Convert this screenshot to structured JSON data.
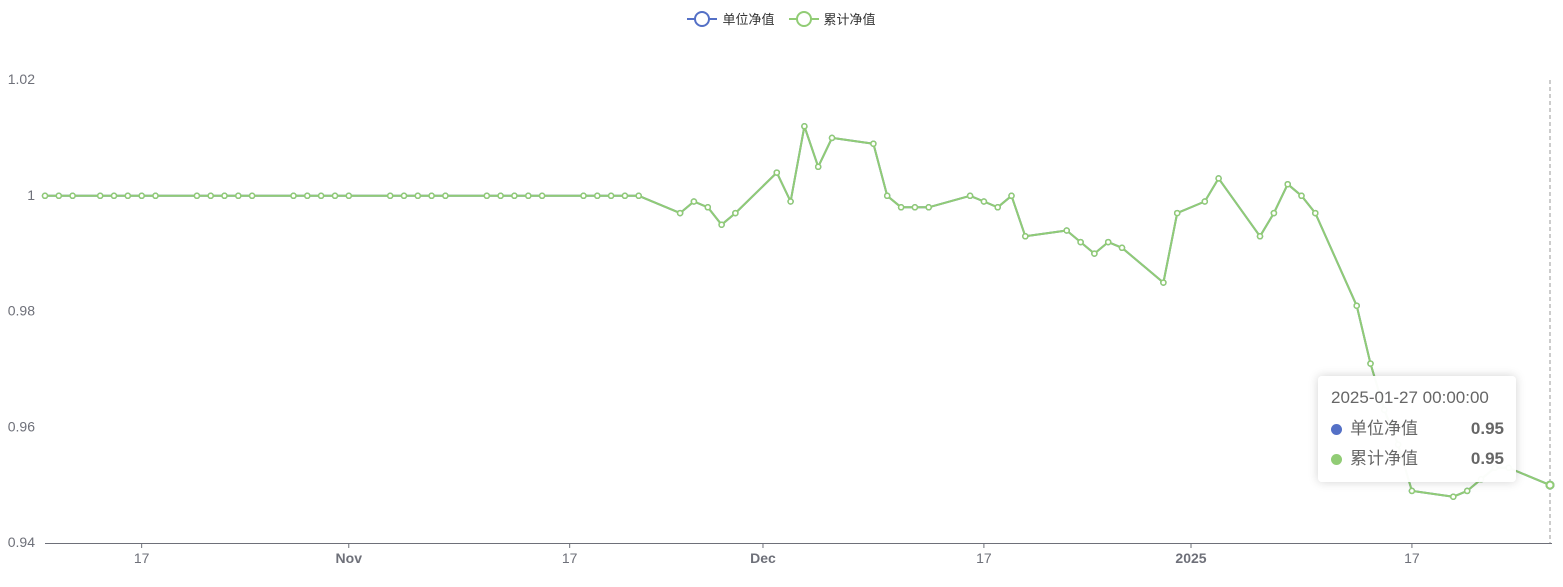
{
  "legend": {
    "items": [
      {
        "label": "单位净值",
        "color": "#5470c6"
      },
      {
        "label": "累计净值",
        "color": "#91cc75"
      }
    ]
  },
  "tooltip": {
    "title": "2025-01-27 00:00:00",
    "rows": [
      {
        "name": "单位净值",
        "value": "0.95",
        "color": "#5470c6"
      },
      {
        "name": "累计净值",
        "value": "0.95",
        "color": "#91cc75"
      }
    ]
  },
  "chart_data": {
    "type": "line",
    "ylim": [
      0.94,
      1.02
    ],
    "y_ticks": [
      "1.02",
      "1",
      "0.98",
      "0.96",
      "0.94"
    ],
    "y_tick_values": [
      1.02,
      1.0,
      0.98,
      0.96,
      0.94
    ],
    "x_range": [
      "2024-10-10",
      "2025-01-27"
    ],
    "x_ticks": [
      {
        "date": "2024-10-17",
        "label": "17",
        "bold": false
      },
      {
        "date": "2024-11-01",
        "label": "Nov",
        "bold": true
      },
      {
        "date": "2024-11-17",
        "label": "17",
        "bold": false
      },
      {
        "date": "2024-12-01",
        "label": "Dec",
        "bold": true
      },
      {
        "date": "2024-12-17",
        "label": "17",
        "bold": false
      },
      {
        "date": "2025-01-01",
        "label": "2025",
        "bold": true
      },
      {
        "date": "2025-01-17",
        "label": "17",
        "bold": false
      }
    ],
    "series": [
      {
        "name": "单位净值",
        "color": "#5470c6",
        "points": [
          [
            "2024-10-10",
            1.0
          ],
          [
            "2024-10-11",
            1.0
          ],
          [
            "2024-10-12",
            1.0
          ],
          [
            "2024-10-14",
            1.0
          ],
          [
            "2024-10-15",
            1.0
          ],
          [
            "2024-10-16",
            1.0
          ],
          [
            "2024-10-17",
            1.0
          ],
          [
            "2024-10-18",
            1.0
          ],
          [
            "2024-10-21",
            1.0
          ],
          [
            "2024-10-22",
            1.0
          ],
          [
            "2024-10-23",
            1.0
          ],
          [
            "2024-10-24",
            1.0
          ],
          [
            "2024-10-25",
            1.0
          ],
          [
            "2024-10-28",
            1.0
          ],
          [
            "2024-10-29",
            1.0
          ],
          [
            "2024-10-30",
            1.0
          ],
          [
            "2024-10-31",
            1.0
          ],
          [
            "2024-11-01",
            1.0
          ],
          [
            "2024-11-04",
            1.0
          ],
          [
            "2024-11-05",
            1.0
          ],
          [
            "2024-11-06",
            1.0
          ],
          [
            "2024-11-07",
            1.0
          ],
          [
            "2024-11-08",
            1.0
          ],
          [
            "2024-11-11",
            1.0
          ],
          [
            "2024-11-12",
            1.0
          ],
          [
            "2024-11-13",
            1.0
          ],
          [
            "2024-11-14",
            1.0
          ],
          [
            "2024-11-15",
            1.0
          ],
          [
            "2024-11-18",
            1.0
          ],
          [
            "2024-11-19",
            1.0
          ],
          [
            "2024-11-20",
            1.0
          ],
          [
            "2024-11-21",
            1.0
          ],
          [
            "2024-11-22",
            1.0
          ],
          [
            "2024-11-25",
            0.997
          ],
          [
            "2024-11-26",
            0.999
          ],
          [
            "2024-11-27",
            0.998
          ],
          [
            "2024-11-28",
            0.995
          ],
          [
            "2024-11-29",
            0.997
          ],
          [
            "2024-12-02",
            1.004
          ],
          [
            "2024-12-03",
            0.999
          ],
          [
            "2024-12-04",
            1.012
          ],
          [
            "2024-12-05",
            1.005
          ],
          [
            "2024-12-06",
            1.01
          ],
          [
            "2024-12-09",
            1.009
          ],
          [
            "2024-12-10",
            1.0
          ],
          [
            "2024-12-11",
            0.998
          ],
          [
            "2024-12-12",
            0.998
          ],
          [
            "2024-12-13",
            0.998
          ],
          [
            "2024-12-16",
            1.0
          ],
          [
            "2024-12-17",
            0.999
          ],
          [
            "2024-12-18",
            0.998
          ],
          [
            "2024-12-19",
            1.0
          ],
          [
            "2024-12-20",
            0.993
          ],
          [
            "2024-12-23",
            0.994
          ],
          [
            "2024-12-24",
            0.992
          ],
          [
            "2024-12-25",
            0.99
          ],
          [
            "2024-12-26",
            0.992
          ],
          [
            "2024-12-27",
            0.991
          ],
          [
            "2024-12-30",
            0.985
          ],
          [
            "2024-12-31",
            0.997
          ],
          [
            "2025-01-02",
            0.999
          ],
          [
            "2025-01-03",
            1.003
          ],
          [
            "2025-01-06",
            0.993
          ],
          [
            "2025-01-07",
            0.997
          ],
          [
            "2025-01-08",
            1.002
          ],
          [
            "2025-01-09",
            1.0
          ],
          [
            "2025-01-10",
            0.997
          ],
          [
            "2025-01-13",
            0.981
          ],
          [
            "2025-01-14",
            0.971
          ],
          [
            "2025-01-15",
            0.963
          ],
          [
            "2025-01-16",
            0.957
          ],
          [
            "2025-01-17",
            0.949
          ],
          [
            "2025-01-20",
            0.948
          ],
          [
            "2025-01-21",
            0.949
          ],
          [
            "2025-01-22",
            0.951
          ],
          [
            "2025-01-23",
            0.953
          ],
          [
            "2025-01-24",
            0.953
          ],
          [
            "2025-01-27",
            0.95
          ]
        ]
      },
      {
        "name": "累计净值",
        "color": "#91cc75",
        "points": [
          [
            "2024-10-10",
            1.0
          ],
          [
            "2024-10-11",
            1.0
          ],
          [
            "2024-10-12",
            1.0
          ],
          [
            "2024-10-14",
            1.0
          ],
          [
            "2024-10-15",
            1.0
          ],
          [
            "2024-10-16",
            1.0
          ],
          [
            "2024-10-17",
            1.0
          ],
          [
            "2024-10-18",
            1.0
          ],
          [
            "2024-10-21",
            1.0
          ],
          [
            "2024-10-22",
            1.0
          ],
          [
            "2024-10-23",
            1.0
          ],
          [
            "2024-10-24",
            1.0
          ],
          [
            "2024-10-25",
            1.0
          ],
          [
            "2024-10-28",
            1.0
          ],
          [
            "2024-10-29",
            1.0
          ],
          [
            "2024-10-30",
            1.0
          ],
          [
            "2024-10-31",
            1.0
          ],
          [
            "2024-11-01",
            1.0
          ],
          [
            "2024-11-04",
            1.0
          ],
          [
            "2024-11-05",
            1.0
          ],
          [
            "2024-11-06",
            1.0
          ],
          [
            "2024-11-07",
            1.0
          ],
          [
            "2024-11-08",
            1.0
          ],
          [
            "2024-11-11",
            1.0
          ],
          [
            "2024-11-12",
            1.0
          ],
          [
            "2024-11-13",
            1.0
          ],
          [
            "2024-11-14",
            1.0
          ],
          [
            "2024-11-15",
            1.0
          ],
          [
            "2024-11-18",
            1.0
          ],
          [
            "2024-11-19",
            1.0
          ],
          [
            "2024-11-20",
            1.0
          ],
          [
            "2024-11-21",
            1.0
          ],
          [
            "2024-11-22",
            1.0
          ],
          [
            "2024-11-25",
            0.997
          ],
          [
            "2024-11-26",
            0.999
          ],
          [
            "2024-11-27",
            0.998
          ],
          [
            "2024-11-28",
            0.995
          ],
          [
            "2024-11-29",
            0.997
          ],
          [
            "2024-12-02",
            1.004
          ],
          [
            "2024-12-03",
            0.999
          ],
          [
            "2024-12-04",
            1.012
          ],
          [
            "2024-12-05",
            1.005
          ],
          [
            "2024-12-06",
            1.01
          ],
          [
            "2024-12-09",
            1.009
          ],
          [
            "2024-12-10",
            1.0
          ],
          [
            "2024-12-11",
            0.998
          ],
          [
            "2024-12-12",
            0.998
          ],
          [
            "2024-12-13",
            0.998
          ],
          [
            "2024-12-16",
            1.0
          ],
          [
            "2024-12-17",
            0.999
          ],
          [
            "2024-12-18",
            0.998
          ],
          [
            "2024-12-19",
            1.0
          ],
          [
            "2024-12-20",
            0.993
          ],
          [
            "2024-12-23",
            0.994
          ],
          [
            "2024-12-24",
            0.992
          ],
          [
            "2024-12-25",
            0.99
          ],
          [
            "2024-12-26",
            0.992
          ],
          [
            "2024-12-27",
            0.991
          ],
          [
            "2024-12-30",
            0.985
          ],
          [
            "2024-12-31",
            0.997
          ],
          [
            "2025-01-02",
            0.999
          ],
          [
            "2025-01-03",
            1.003
          ],
          [
            "2025-01-06",
            0.993
          ],
          [
            "2025-01-07",
            0.997
          ],
          [
            "2025-01-08",
            1.002
          ],
          [
            "2025-01-09",
            1.0
          ],
          [
            "2025-01-10",
            0.997
          ],
          [
            "2025-01-13",
            0.981
          ],
          [
            "2025-01-14",
            0.971
          ],
          [
            "2025-01-15",
            0.963
          ],
          [
            "2025-01-16",
            0.957
          ],
          [
            "2025-01-17",
            0.949
          ],
          [
            "2025-01-20",
            0.948
          ],
          [
            "2025-01-21",
            0.949
          ],
          [
            "2025-01-22",
            0.951
          ],
          [
            "2025-01-23",
            0.953
          ],
          [
            "2025-01-24",
            0.953
          ],
          [
            "2025-01-27",
            0.95
          ]
        ]
      }
    ]
  }
}
